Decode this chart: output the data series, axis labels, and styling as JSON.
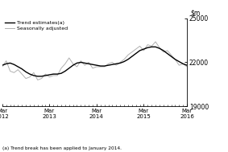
{
  "title": "",
  "ylim": [
    19000,
    25000
  ],
  "yticks": [
    19000,
    22000,
    25000
  ],
  "xlabel": "",
  "footnote": "(a) Trend break has been applied to January 2014.",
  "legend_entries": [
    "Trend estimates(a)",
    "Seasonally adjusted"
  ],
  "trend_color": "#000000",
  "seasonal_color": "#b0b0b0",
  "trend_linewidth": 1.0,
  "seasonal_linewidth": 0.7,
  "background_color": "#ffffff",
  "x_tick_labels": [
    "Mar\n2012",
    "Mar\n2013",
    "Mar\n2014",
    "Mar\n2015",
    "Mar\n2016"
  ],
  "x_tick_positions": [
    0,
    12,
    24,
    36,
    47
  ],
  "trend_data": [
    21800,
    21900,
    21950,
    21850,
    21700,
    21550,
    21350,
    21200,
    21100,
    21050,
    21050,
    21100,
    21150,
    21200,
    21200,
    21250,
    21400,
    21600,
    21800,
    21950,
    22000,
    21950,
    21900,
    21850,
    21800,
    21750,
    21750,
    21800,
    21850,
    21900,
    21950,
    22050,
    22200,
    22400,
    22600,
    22800,
    22900,
    23000,
    23050,
    23050,
    22950,
    22800,
    22600,
    22400,
    22200,
    22050,
    21900,
    21800
  ],
  "seasonal_data": [
    21700,
    22100,
    21400,
    21300,
    21500,
    21200,
    20900,
    21000,
    21300,
    20800,
    20900,
    21200,
    21000,
    21100,
    21100,
    21600,
    21900,
    22300,
    21900,
    21700,
    22100,
    21800,
    22000,
    21600,
    21700,
    21700,
    21700,
    21900,
    22000,
    21800,
    22000,
    22200,
    22500,
    22700,
    22900,
    23100,
    22800,
    23200,
    23100,
    23400,
    23000,
    22700,
    22800,
    22500,
    22200,
    21800,
    21900,
    21700
  ]
}
